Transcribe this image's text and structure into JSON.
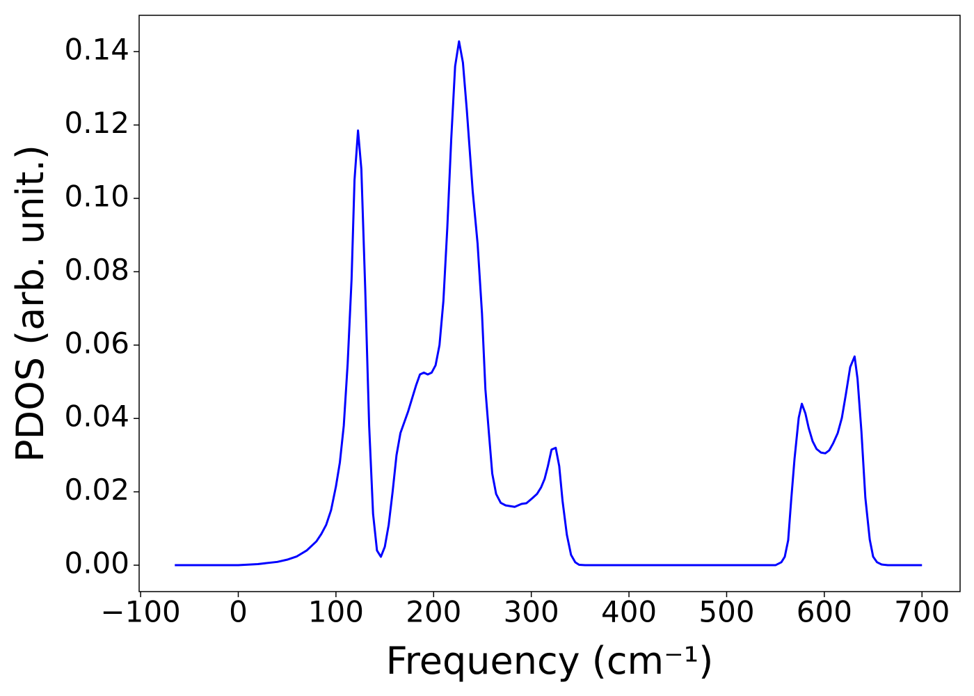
{
  "chart_data": {
    "type": "line",
    "xlabel": "Frequency (cm⁻¹)",
    "ylabel": "PDOS (arb. unit.)",
    "x": [
      -65,
      -40,
      -20,
      0,
      20,
      40,
      50,
      60,
      70,
      80,
      85,
      90,
      95,
      100,
      104,
      108,
      112,
      116,
      119,
      122.6,
      126,
      130,
      134,
      138,
      142,
      146,
      150,
      154,
      158,
      162,
      166,
      170,
      174,
      178,
      182,
      186,
      190,
      194,
      198,
      202,
      206,
      210,
      214,
      218,
      222,
      226,
      230,
      234,
      240,
      245,
      249.5,
      253,
      256.6,
      260,
      264,
      268.7,
      273.7,
      283,
      290,
      295,
      300.8,
      305.8,
      310,
      313.6,
      317,
      320.7,
      325,
      328.6,
      332,
      336.4,
      340.7,
      345,
      349,
      355,
      450,
      550,
      556,
      559.5,
      563,
      566,
      569.5,
      573.8,
      577,
      580.6,
      584,
      588,
      592,
      596.6,
      601,
      605,
      609,
      613.7,
      618,
      622,
      626.5,
      631,
      634,
      638,
      642,
      646.5,
      650,
      654,
      658.6,
      665,
      700
    ],
    "series": [
      {
        "name": "PDOS",
        "color": "#0000ff",
        "values": [
          0,
          0,
          0,
          0,
          0.0003,
          0.0009,
          0.0015,
          0.0024,
          0.004,
          0.0065,
          0.0085,
          0.011,
          0.015,
          0.0215,
          0.028,
          0.038,
          0.055,
          0.078,
          0.105,
          0.1185,
          0.108,
          0.075,
          0.038,
          0.014,
          0.004,
          0.0023,
          0.005,
          0.011,
          0.02,
          0.03,
          0.036,
          0.039,
          0.042,
          0.0455,
          0.049,
          0.052,
          0.0525,
          0.052,
          0.0525,
          0.0545,
          0.06,
          0.072,
          0.092,
          0.116,
          0.136,
          0.1428,
          0.137,
          0.124,
          0.102,
          0.0877,
          0.0687,
          0.048,
          0.036,
          0.025,
          0.0194,
          0.017,
          0.0163,
          0.0159,
          0.0167,
          0.0169,
          0.0182,
          0.0194,
          0.0212,
          0.0235,
          0.027,
          0.0315,
          0.032,
          0.027,
          0.0175,
          0.0083,
          0.0028,
          0.0008,
          0.0001,
          0,
          0,
          0,
          0.0008,
          0.0023,
          0.0068,
          0.0175,
          0.029,
          0.0402,
          0.044,
          0.0414,
          0.0374,
          0.0338,
          0.0317,
          0.0307,
          0.0305,
          0.0313,
          0.0332,
          0.036,
          0.0402,
          0.0465,
          0.054,
          0.0569,
          0.0508,
          0.0364,
          0.0184,
          0.007,
          0.0023,
          0.0008,
          0.0002,
          0,
          0
        ]
      }
    ],
    "xlim": [
      -101.5,
      739
    ],
    "ylim": [
      -0.0072,
      0.1499
    ],
    "xticks": [
      {
        "value": -100,
        "label": "−100"
      },
      0,
      100,
      200,
      300,
      400,
      500,
      600,
      700
    ],
    "yticks": [
      {
        "value": 0,
        "label": "0.00"
      },
      0.02,
      0.04,
      0.06,
      0.08,
      {
        "value": 0.1,
        "label": "0.10"
      },
      0.12,
      0.14
    ]
  }
}
